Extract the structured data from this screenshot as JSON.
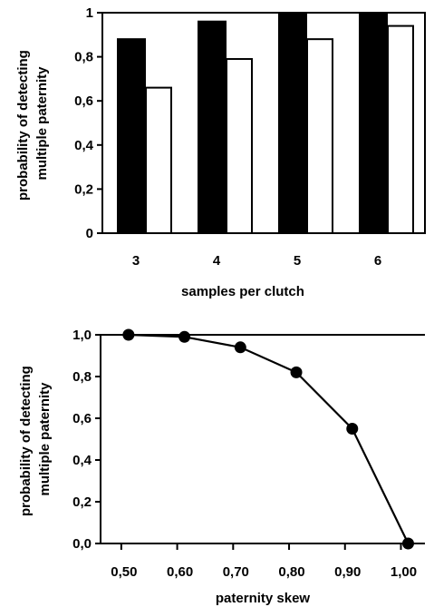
{
  "chart_data": [
    {
      "type": "bar",
      "title": "",
      "xlabel": "samples per clutch",
      "ylabel": [
        "probability of detecting",
        "multiple paternity"
      ],
      "categories": [
        "3",
        "4",
        "5",
        "6"
      ],
      "series": [
        {
          "values": [
            0.88,
            0.96,
            1.0,
            1.0
          ],
          "color": "#000000"
        },
        {
          "values": [
            0.66,
            0.79,
            0.88,
            0.94
          ],
          "color": "#ffffff"
        }
      ],
      "ylim": [
        0,
        1
      ],
      "yticks": [
        0,
        0.2,
        0.4,
        0.6,
        0.8,
        1
      ],
      "ytick_labels": [
        "0",
        "0,2",
        "0,4",
        "0,6",
        "0,8",
        "1"
      ],
      "grid": false,
      "legend": "none"
    },
    {
      "type": "line",
      "title": "",
      "xlabel": "paternity skew",
      "ylabel": [
        "probability of detecting",
        "multiple paternity"
      ],
      "x": [
        0.5,
        0.6,
        0.7,
        0.8,
        0.9,
        1.0
      ],
      "xtick_labels": [
        "0,50",
        "0,60",
        "0,70",
        "0,80",
        "0,90",
        "1,00"
      ],
      "series": [
        {
          "values": [
            1.0,
            0.99,
            0.94,
            0.82,
            0.55,
            0.0
          ],
          "color": "#000000"
        }
      ],
      "ylim": [
        0,
        1
      ],
      "yticks": [
        0,
        0.2,
        0.4,
        0.6,
        0.8,
        1.0
      ],
      "ytick_labels": [
        "0,0",
        "0,2",
        "0,4",
        "0,6",
        "0,8",
        "1,0"
      ],
      "grid": false,
      "legend": "none"
    }
  ]
}
